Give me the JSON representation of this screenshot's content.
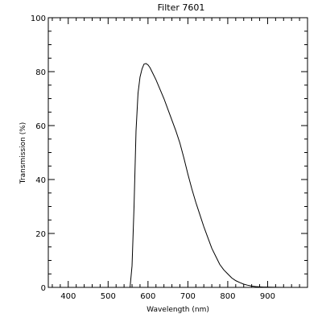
{
  "chart_data": {
    "type": "line",
    "title": "Filter 7601",
    "xlabel": "Wavelength (nm)",
    "ylabel": "Transmission (%)",
    "xlim": [
      350,
      1000
    ],
    "ylim": [
      0,
      100
    ],
    "x_ticks": [
      400,
      500,
      600,
      700,
      800,
      900
    ],
    "y_ticks": [
      0,
      20,
      40,
      60,
      80,
      100
    ],
    "grid": false,
    "color": "#000000",
    "series": [
      {
        "x": [
          350,
          555,
          560,
          565,
          570,
          575,
          580,
          585,
          590,
          595,
          600,
          605,
          610,
          620,
          630,
          640,
          650,
          660,
          670,
          680,
          690,
          700,
          710,
          720,
          730,
          740,
          750,
          760,
          770,
          780,
          790,
          800,
          810,
          820,
          830,
          840,
          850,
          860,
          870,
          880,
          890,
          900,
          920,
          940,
          960,
          980,
          1000
        ],
        "y": [
          0,
          0,
          8,
          30,
          58,
          72,
          78,
          81,
          82.8,
          83,
          82.5,
          81.5,
          80,
          77,
          73.5,
          70,
          66,
          62,
          58,
          53.5,
          48,
          42,
          36.5,
          31.5,
          27,
          22.5,
          18.5,
          14.5,
          11.5,
          8.5,
          6.5,
          5,
          3.5,
          2.5,
          1.8,
          1.2,
          0.8,
          0.5,
          0.3,
          0.2,
          0.1,
          0.1,
          0.05,
          0,
          0,
          0,
          0
        ]
      }
    ]
  }
}
